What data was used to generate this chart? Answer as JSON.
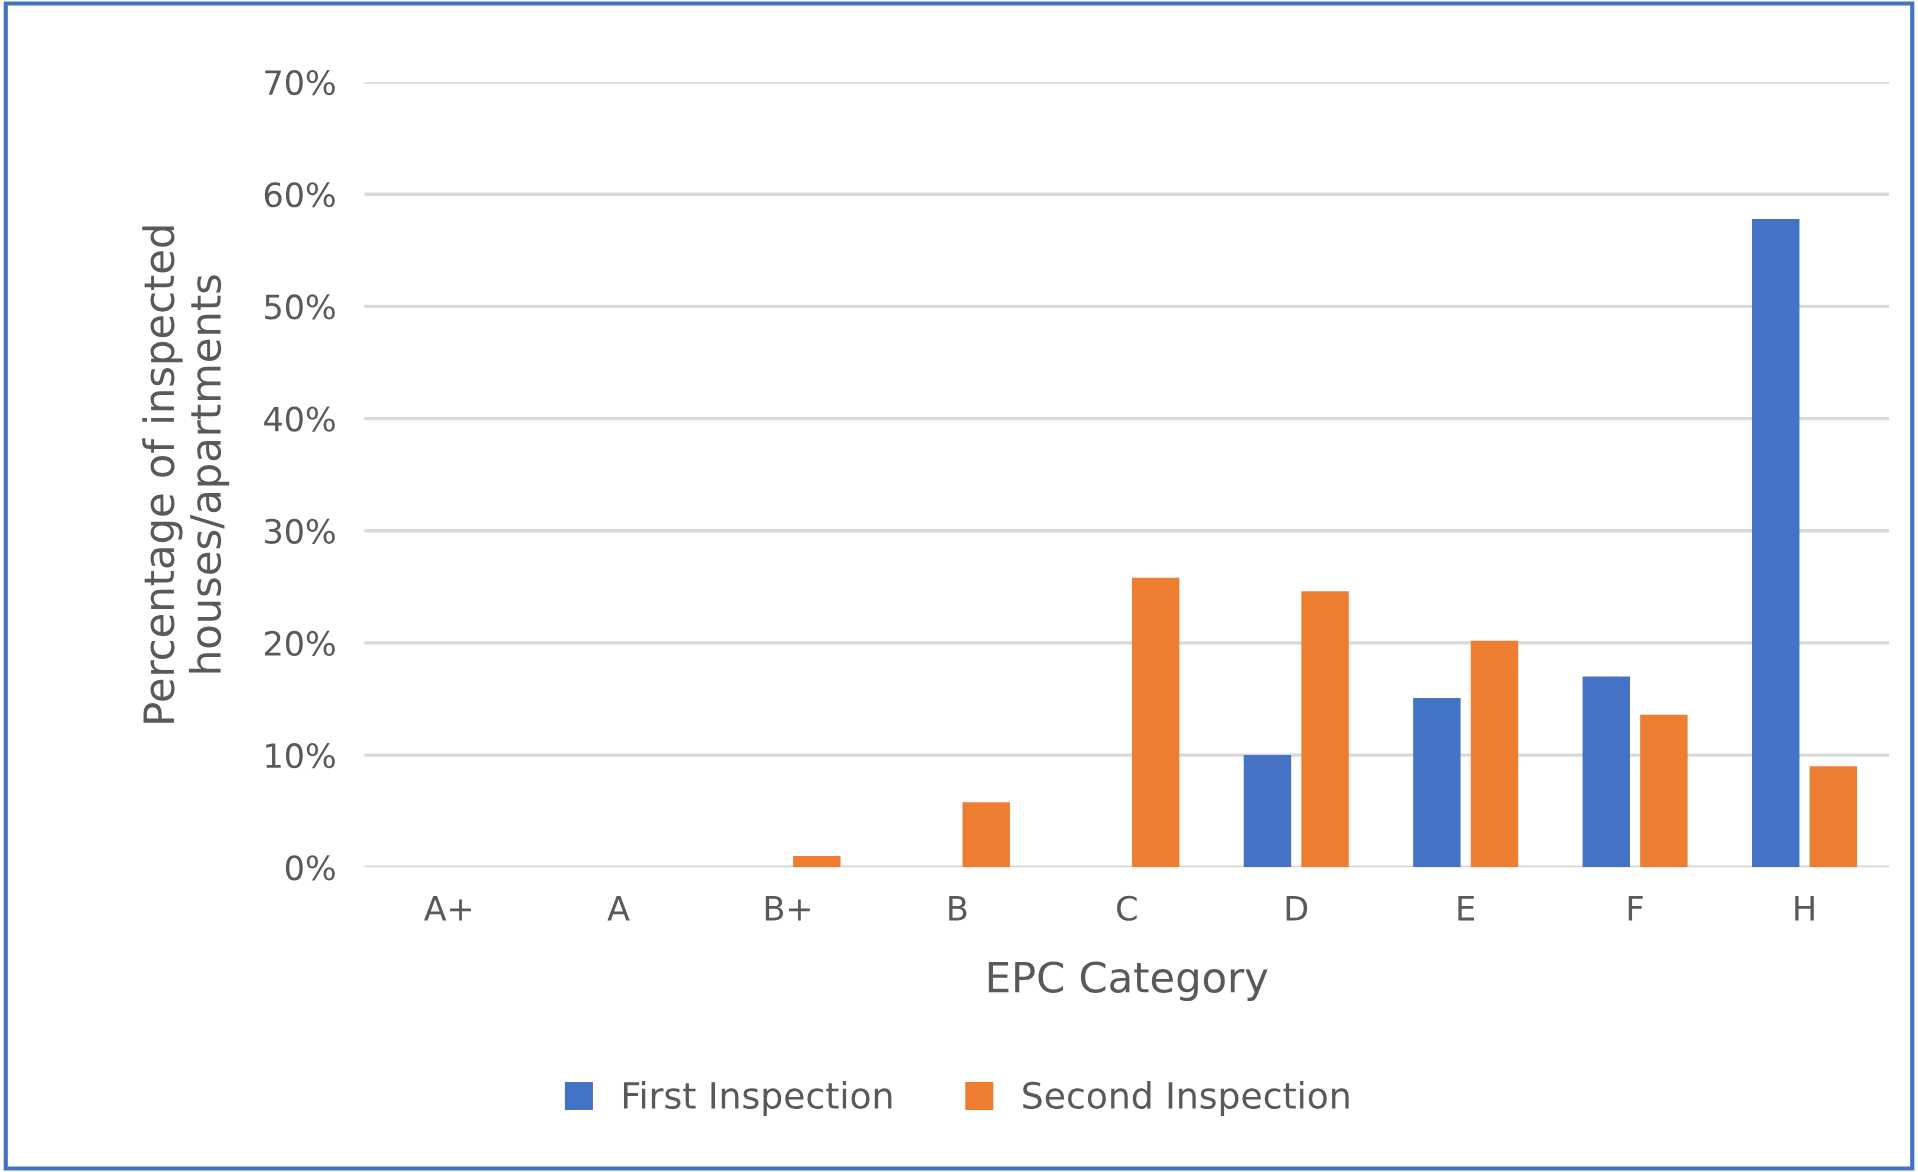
{
  "chart_data": {
    "type": "bar",
    "xlabel": "EPC Category",
    "ylabel": "Percentage of inspected\nhouses/apartments",
    "categories": [
      "A+",
      "A",
      "B+",
      "B",
      "C",
      "D",
      "E",
      "F",
      "H"
    ],
    "series": [
      {
        "name": "First Inspection",
        "color": "#4472c4",
        "values": [
          0,
          0,
          0,
          0,
          0,
          10.0,
          15.1,
          17.0,
          57.8
        ]
      },
      {
        "name": "Second Inspection",
        "color": "#ed7d31",
        "values": [
          0,
          0,
          1.0,
          5.8,
          25.8,
          24.6,
          20.2,
          13.6,
          9.0
        ]
      }
    ],
    "ylim": [
      0,
      70
    ],
    "yticks": [
      {
        "value": 0,
        "label": "0%"
      },
      {
        "value": 10,
        "label": "10%"
      },
      {
        "value": 20,
        "label": "20%"
      },
      {
        "value": 30,
        "label": "30%"
      },
      {
        "value": 40,
        "label": "40%"
      },
      {
        "value": 50,
        "label": "50%"
      },
      {
        "value": 60,
        "label": "60%"
      },
      {
        "value": 70,
        "label": "70%"
      }
    ],
    "grid": "y",
    "legend": "bottom"
  }
}
